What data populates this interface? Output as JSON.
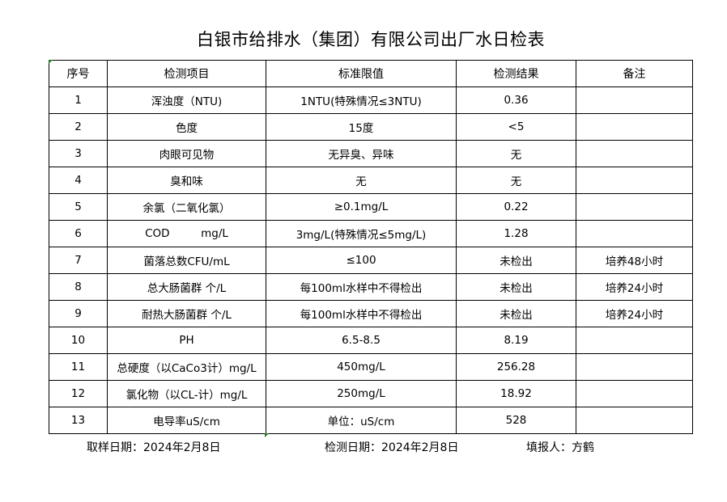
{
  "title": "白银市给排水（集团）有限公司出厂水日检表",
  "columns": [
    "序号",
    "检测项目",
    "标准限值",
    "检测结果",
    "备注"
  ],
  "rows": [
    [
      "1",
      "浑浊度（NTU)",
      "1NTU(特殊情况≤3NTU)",
      "0.36",
      ""
    ],
    [
      "2",
      "色度",
      "15度",
      "<5",
      ""
    ],
    [
      "3",
      "肉眼可见物",
      "无异臭、异味",
      "无",
      ""
    ],
    [
      "4",
      "臭和味",
      "无",
      "无",
      ""
    ],
    [
      "5",
      "余氯（二氧化氯）",
      "≥0.1mg/L",
      "0.22",
      ""
    ],
    [
      "6",
      "COD         mg/L",
      "3mg/L(特殊情况≤5mg/L)",
      "1.28",
      ""
    ],
    [
      "7",
      "菌落总数CFU/mL",
      "≤100",
      "未检出",
      "培养48小时"
    ],
    [
      "8",
      "总大肠菌群 个/L",
      "每100ml水样中不得检出",
      "未检出",
      "培养24小时"
    ],
    [
      "9",
      "耐热大肠菌群 个/L",
      "每100ml水样中不得检出",
      "未检出",
      "培养24小时"
    ],
    [
      "10",
      "PH",
      "6.5-8.5",
      "8.19",
      ""
    ],
    [
      "11",
      "总硬度（以CaCo3计）mg/L",
      "450mg/L",
      "256.28",
      ""
    ],
    [
      "12",
      "氯化物（以CL-计）mg/L",
      "250mg/L",
      "18.92",
      ""
    ],
    [
      "13",
      "电导率uS/cm",
      "单位：uS/cm",
      "528",
      ""
    ]
  ],
  "footer": {
    "sampling_date": "取样日期：2024年2月8日",
    "test_date": "检测日期：2024年2月8日",
    "reporter": "填报人：方鹤"
  },
  "colors": {
    "cell_marker": "#1e7a1e"
  }
}
